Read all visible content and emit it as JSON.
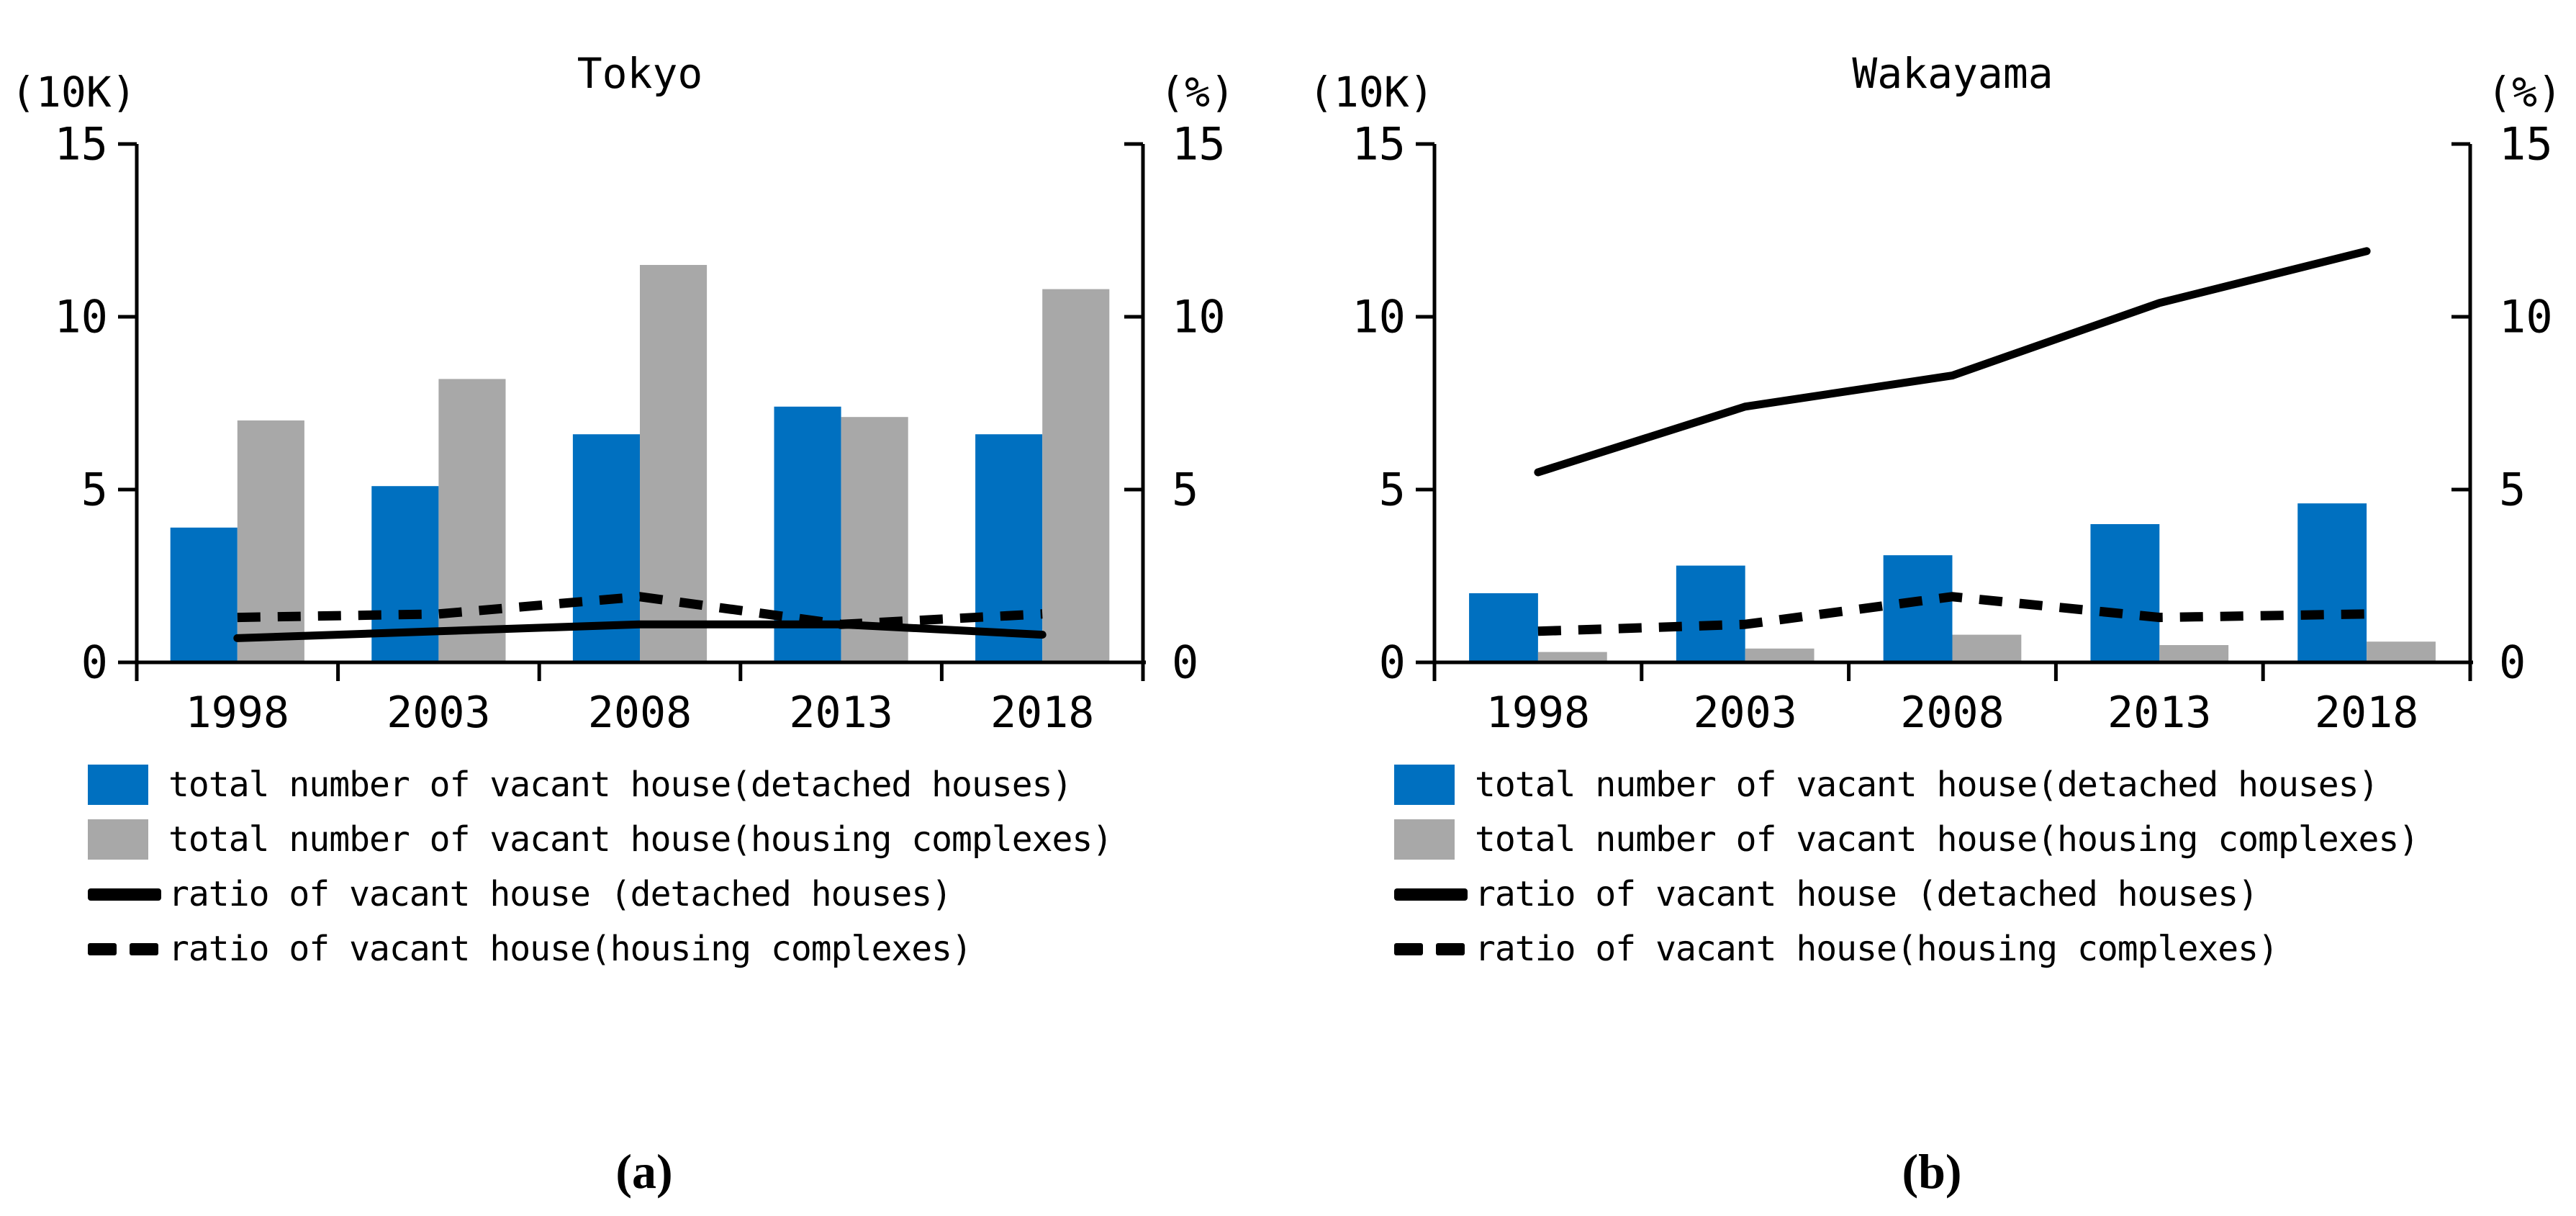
{
  "figure": {
    "background": "#FFFFFF",
    "captions": [
      "(a)",
      "(b)"
    ]
  },
  "colors": {
    "bar_detached": "#0070C0",
    "bar_complexes": "#A8A8A8",
    "line": "#000000",
    "axis": "#000000"
  },
  "chart_data": [
    {
      "type": "bar+line",
      "title": "Tokyo",
      "caption": "(a)",
      "left_axis": {
        "unit": "(10K)",
        "min": 0,
        "max": 15,
        "ticks": [
          0,
          5,
          10,
          15
        ]
      },
      "right_axis": {
        "unit": "(%)",
        "min": 0,
        "max": 15,
        "ticks": [
          0,
          5,
          10,
          15
        ]
      },
      "grid": false,
      "legend_position": "below",
      "categories": [
        "1998",
        "2003",
        "2008",
        "2013",
        "2018"
      ],
      "series": [
        {
          "name": "total number of vacant house(detached houses)",
          "type": "bar",
          "axis": "left",
          "color": "#0070C0",
          "values": [
            3.9,
            5.1,
            6.6,
            7.4,
            6.6
          ]
        },
        {
          "name": "total number of vacant house(housing complexes)",
          "type": "bar",
          "axis": "left",
          "color": "#A8A8A8",
          "values": [
            7.0,
            8.2,
            11.5,
            7.1,
            10.8
          ]
        },
        {
          "name": "ratio of vacant house (detached houses)",
          "type": "line",
          "line_style": "solid",
          "axis": "right",
          "color": "#000000",
          "values": [
            0.7,
            0.9,
            1.1,
            1.1,
            0.8
          ]
        },
        {
          "name": "ratio of vacant house(housing complexes)",
          "type": "line",
          "line_style": "dashed",
          "axis": "right",
          "color": "#000000",
          "values": [
            1.3,
            1.4,
            1.9,
            1.1,
            1.4
          ]
        }
      ]
    },
    {
      "type": "bar+line",
      "title": "Wakayama",
      "caption": "(b)",
      "left_axis": {
        "unit": "(10K)",
        "min": 0,
        "max": 15,
        "ticks": [
          0,
          5,
          10,
          15
        ]
      },
      "right_axis": {
        "unit": "(%)",
        "min": 0,
        "max": 15,
        "ticks": [
          0,
          5,
          10,
          15
        ]
      },
      "grid": false,
      "legend_position": "below",
      "categories": [
        "1998",
        "2003",
        "2008",
        "2013",
        "2018"
      ],
      "series": [
        {
          "name": "total number of vacant house(detached houses)",
          "type": "bar",
          "axis": "left",
          "color": "#0070C0",
          "values": [
            2.0,
            2.8,
            3.1,
            4.0,
            4.6
          ]
        },
        {
          "name": "total number of vacant house(housing complexes)",
          "type": "bar",
          "axis": "left",
          "color": "#A8A8A8",
          "values": [
            0.3,
            0.4,
            0.8,
            0.5,
            0.6
          ]
        },
        {
          "name": "ratio of vacant house (detached houses)",
          "type": "line",
          "line_style": "solid",
          "axis": "right",
          "color": "#000000",
          "values": [
            5.5,
            7.4,
            8.3,
            10.4,
            11.9
          ]
        },
        {
          "name": "ratio of vacant house(housing complexes)",
          "type": "line",
          "line_style": "dashed",
          "axis": "right",
          "color": "#000000",
          "values": [
            0.9,
            1.1,
            1.9,
            1.3,
            1.4
          ]
        }
      ]
    }
  ]
}
